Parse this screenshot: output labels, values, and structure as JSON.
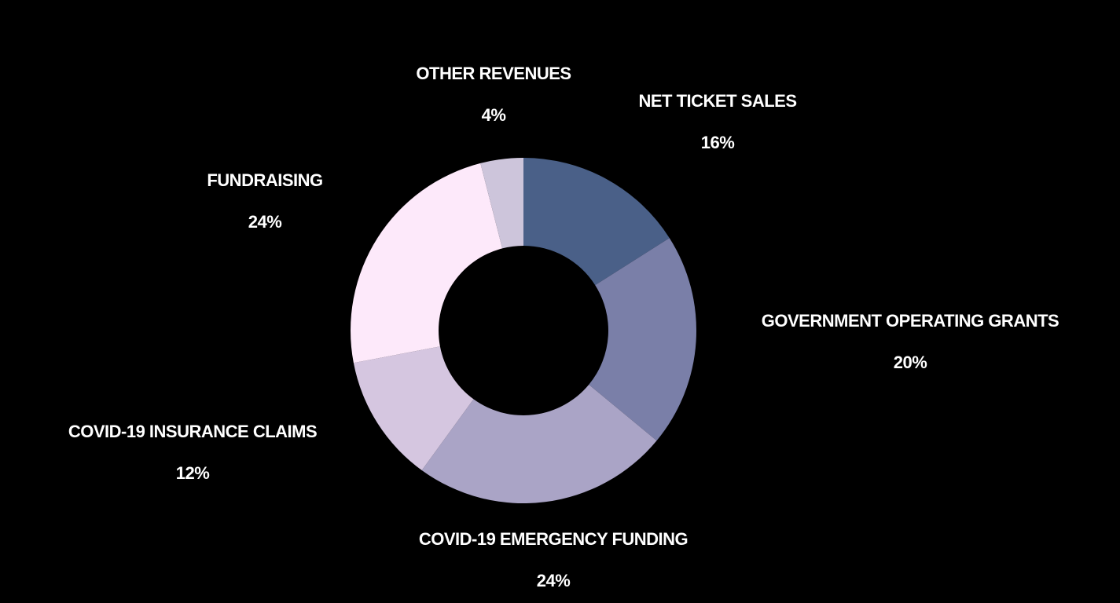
{
  "chart_data": {
    "type": "donut",
    "categories": [
      "NET TICKET SALES",
      "GOVERNMENT OPERATING GRANTS",
      "COVID-19 EMERGENCY FUNDING",
      "COVID-19 INSURANCE CLAIMS",
      "FUNDRAISING",
      "OTHER REVENUES"
    ],
    "values": [
      16,
      20,
      24,
      12,
      24,
      4
    ],
    "value_labels": [
      "16%",
      "20%",
      "24%",
      "12%",
      "24%",
      "4%"
    ],
    "colors": [
      "#4a6088",
      "#7a7fa8",
      "#aaa4c6",
      "#d5c6e0",
      "#fde9fa",
      "#cdc5db"
    ]
  }
}
